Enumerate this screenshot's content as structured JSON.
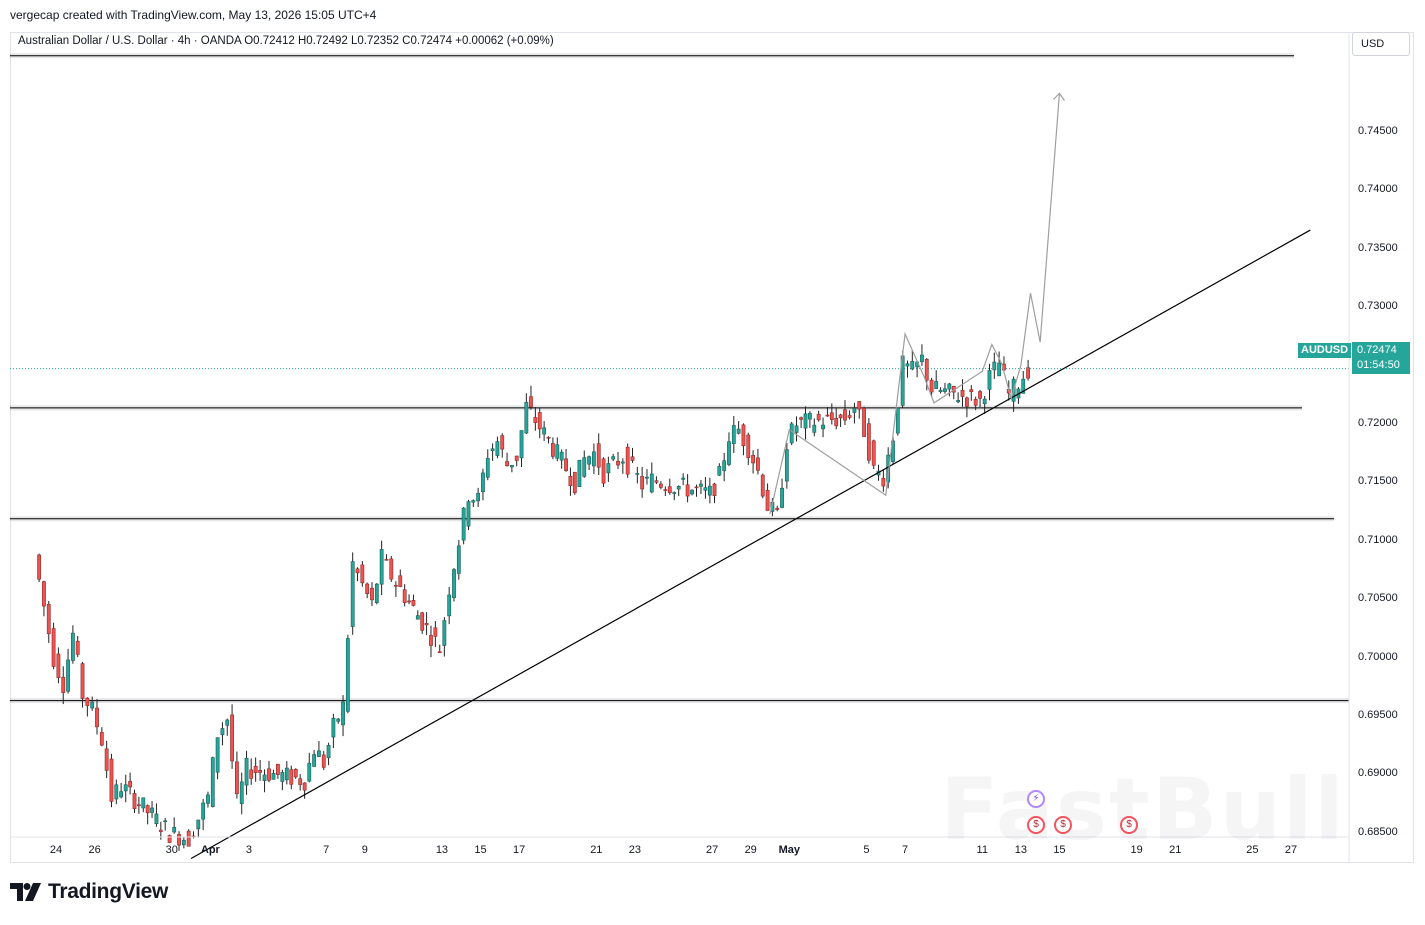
{
  "header": {
    "caption": "vergecap created with TradingView.com, May 13, 2026 15:05 UTC+4"
  },
  "symbol_line": "Australian Dollar / U.S. Dollar · 4h · OANDA  O0.72412  H0.72492  L0.72352  C0.72474  +0.00062 (+0.09%)",
  "currency": "USD",
  "last_price": {
    "symbol": "AUDUSD",
    "price": "0.72474",
    "countdown": "01:54:50"
  },
  "brand": {
    "logo_text": "TradingView",
    "watermark": "FastBull"
  },
  "colors": {
    "up": "#26a69a",
    "down": "#ef5350",
    "price_tag": "#26a69a",
    "lines": "#000000",
    "projection": "#9e9e9e"
  },
  "chart_data": {
    "type": "candlestick",
    "title": "",
    "timeframe": "4h",
    "ylim": [
      0.6825,
      0.7515
    ],
    "y_ticks": [
      "0.74500",
      "0.74000",
      "0.73500",
      "0.73000",
      "0.72500",
      "0.72000",
      "0.71500",
      "0.71000",
      "0.70500",
      "0.70000",
      "0.69500",
      "0.69000",
      "0.68500"
    ],
    "x_ticks": [
      {
        "label": "24",
        "date": "2026-03-24"
      },
      {
        "label": "26",
        "date": "2026-03-26"
      },
      {
        "label": "30",
        "date": "2026-03-30"
      },
      {
        "label": "Apr",
        "date": "2026-04-01"
      },
      {
        "label": "3",
        "date": "2026-04-03"
      },
      {
        "label": "7",
        "date": "2026-04-07"
      },
      {
        "label": "9",
        "date": "2026-04-09"
      },
      {
        "label": "13",
        "date": "2026-04-13"
      },
      {
        "label": "15",
        "date": "2026-04-15"
      },
      {
        "label": "17",
        "date": "2026-04-17"
      },
      {
        "label": "21",
        "date": "2026-04-21"
      },
      {
        "label": "23",
        "date": "2026-04-23"
      },
      {
        "label": "27",
        "date": "2026-04-27"
      },
      {
        "label": "29",
        "date": "2026-04-29"
      },
      {
        "label": "May",
        "date": "2026-05-01"
      },
      {
        "label": "5",
        "date": "2026-05-05"
      },
      {
        "label": "7",
        "date": "2026-05-07"
      },
      {
        "label": "11",
        "date": "2026-05-11"
      },
      {
        "label": "13",
        "date": "2026-05-13"
      },
      {
        "label": "15",
        "date": "2026-05-15"
      },
      {
        "label": "19",
        "date": "2026-05-19"
      },
      {
        "label": "21",
        "date": "2026-05-21"
      },
      {
        "label": "25",
        "date": "2026-05-25"
      },
      {
        "label": "27",
        "date": "2026-05-27"
      }
    ],
    "close_path": [
      {
        "date": "2026-03-23",
        "close": 0.7088
      },
      {
        "date": "2026-03-24",
        "close": 0.7
      },
      {
        "date": "2026-03-24T12",
        "close": 0.6978
      },
      {
        "date": "2026-03-25",
        "close": 0.702
      },
      {
        "date": "2026-03-25T12",
        "close": 0.6968
      },
      {
        "date": "2026-03-26",
        "close": 0.6955
      },
      {
        "date": "2026-03-26T12",
        "close": 0.693
      },
      {
        "date": "2026-03-27",
        "close": 0.688
      },
      {
        "date": "2026-03-27T12",
        "close": 0.689
      },
      {
        "date": "2026-03-30",
        "close": 0.685
      },
      {
        "date": "2026-03-31",
        "close": 0.6845
      },
      {
        "date": "2026-04-01",
        "close": 0.688
      },
      {
        "date": "2026-04-01T12",
        "close": 0.6935
      },
      {
        "date": "2026-04-02",
        "close": 0.6948
      },
      {
        "date": "2026-04-02T12",
        "close": 0.6875
      },
      {
        "date": "2026-04-03",
        "close": 0.6905
      },
      {
        "date": "2026-04-06",
        "close": 0.6895
      },
      {
        "date": "2026-04-06T12",
        "close": 0.6922
      },
      {
        "date": "2026-04-07",
        "close": 0.691
      },
      {
        "date": "2026-04-07T12",
        "close": 0.694
      },
      {
        "date": "2026-04-08",
        "close": 0.6958
      },
      {
        "date": "2026-04-08T12",
        "close": 0.708
      },
      {
        "date": "2026-04-09",
        "close": 0.7062
      },
      {
        "date": "2026-04-09T12",
        "close": 0.7045
      },
      {
        "date": "2026-04-10",
        "close": 0.7085
      },
      {
        "date": "2026-04-10T12",
        "close": 0.707
      },
      {
        "date": "2026-04-13",
        "close": 0.7008
      },
      {
        "date": "2026-04-13T12",
        "close": 0.706
      },
      {
        "date": "2026-04-14",
        "close": 0.71
      },
      {
        "date": "2026-04-14T12",
        "close": 0.714
      },
      {
        "date": "2026-04-15",
        "close": 0.7135
      },
      {
        "date": "2026-04-15T12",
        "close": 0.7175
      },
      {
        "date": "2026-04-16",
        "close": 0.7185
      },
      {
        "date": "2026-04-16T12",
        "close": 0.7165
      },
      {
        "date": "2026-04-17",
        "close": 0.7172
      },
      {
        "date": "2026-04-17T12",
        "close": 0.7215
      },
      {
        "date": "2026-04-20",
        "close": 0.715
      },
      {
        "date": "2026-04-20T12",
        "close": 0.717
      },
      {
        "date": "2026-04-21",
        "close": 0.7175
      },
      {
        "date": "2026-04-21T12",
        "close": 0.7158
      },
      {
        "date": "2026-04-22",
        "close": 0.7165
      },
      {
        "date": "2026-04-22T12",
        "close": 0.7172
      },
      {
        "date": "2026-04-23",
        "close": 0.716
      },
      {
        "date": "2026-04-23T12",
        "close": 0.7148
      },
      {
        "date": "2026-04-24",
        "close": 0.7152
      },
      {
        "date": "2026-04-27",
        "close": 0.714
      },
      {
        "date": "2026-04-27T12",
        "close": 0.7155
      },
      {
        "date": "2026-04-28",
        "close": 0.719
      },
      {
        "date": "2026-04-28T12",
        "close": 0.7195
      },
      {
        "date": "2026-04-29",
        "close": 0.718
      },
      {
        "date": "2026-04-29T12",
        "close": 0.716
      },
      {
        "date": "2026-04-30",
        "close": 0.713
      },
      {
        "date": "2026-04-30T12",
        "close": 0.712
      },
      {
        "date": "2026-05-01",
        "close": 0.7185
      },
      {
        "date": "2026-05-01T12",
        "close": 0.72
      },
      {
        "date": "2026-05-04",
        "close": 0.7205
      },
      {
        "date": "2026-05-04T12",
        "close": 0.7215
      },
      {
        "date": "2026-05-05",
        "close": 0.7195
      },
      {
        "date": "2026-05-05T12",
        "close": 0.716
      },
      {
        "date": "2026-05-06",
        "close": 0.7155
      },
      {
        "date": "2026-05-06T12",
        "close": 0.719
      },
      {
        "date": "2026-05-07",
        "close": 0.725
      },
      {
        "date": "2026-05-07T12",
        "close": 0.7245
      },
      {
        "date": "2026-05-08",
        "close": 0.7255
      },
      {
        "date": "2026-05-08T12",
        "close": 0.723
      },
      {
        "date": "2026-05-11",
        "close": 0.722
      },
      {
        "date": "2026-05-11T12",
        "close": 0.724
      },
      {
        "date": "2026-05-12",
        "close": 0.7252
      },
      {
        "date": "2026-05-12T12",
        "close": 0.7225
      },
      {
        "date": "2026-05-13",
        "close": 0.7235
      },
      {
        "date": "2026-05-13T12",
        "close": 0.72474
      }
    ],
    "horizontal_levels": [
      0.72138,
      0.71188,
      0.69632,
      0.75152
    ],
    "trendline": [
      {
        "date": "2026-03-31",
        "price": 0.6828
      },
      {
        "date": "2026-05-28",
        "price": 0.7366
      }
    ],
    "projection_path": [
      {
        "date": "2026-04-30",
        "price": 0.7123
      },
      {
        "date": "2026-05-01",
        "price": 0.7195
      },
      {
        "date": "2026-05-06",
        "price": 0.7139
      },
      {
        "date": "2026-05-07",
        "price": 0.7277
      },
      {
        "date": "2026-05-08",
        "price": 0.724
      },
      {
        "date": "2026-05-08T12",
        "price": 0.7218
      },
      {
        "date": "2026-05-11",
        "price": 0.7245
      },
      {
        "date": "2026-05-11T12",
        "price": 0.7268
      },
      {
        "date": "2026-05-12",
        "price": 0.7252
      },
      {
        "date": "2026-05-12T12",
        "price": 0.7222
      },
      {
        "date": "2026-05-13",
        "price": 0.725
      },
      {
        "date": "2026-05-13T12",
        "price": 0.7312
      },
      {
        "date": "2026-05-14",
        "price": 0.727
      },
      {
        "date": "2026-05-15",
        "price": 0.7483
      }
    ]
  }
}
